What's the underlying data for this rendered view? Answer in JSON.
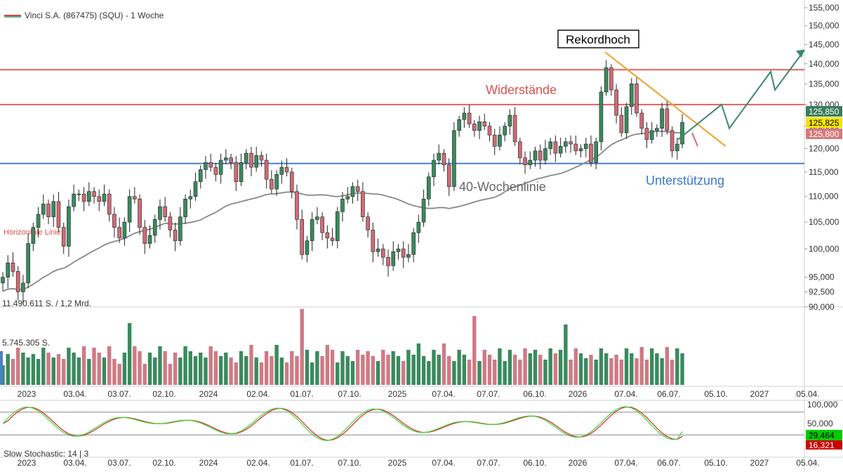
{
  "header": {
    "title": "Vinci S.A. (867475) (SQU) - 1 Woche",
    "legend_line_color": "#c84c4c"
  },
  "chart_data": [
    {
      "type": "candlestick",
      "title": "Vinci S.A. (867475) (SQU) - 1 Woche",
      "period": "1 Woche",
      "x_ticks": [
        "2023",
        "03.04.",
        "03.07.",
        "02.10.",
        "2024",
        "02.04.",
        "01.07.",
        "07.10.",
        "2025",
        "07.04.",
        "07.07.",
        "06.10.",
        "2026",
        "07.04.",
        "06.07.",
        "05.10.",
        "2027",
        "05.04."
      ],
      "y_ticks": [
        "155,000",
        "150,000",
        "145,000",
        "140,000",
        "135,000",
        "130,000",
        "125,000",
        "120,000",
        "115,000",
        "110,000",
        "105,000",
        "100,000",
        "95,000",
        "92,500",
        "90,000"
      ],
      "ylim": [
        90,
        156
      ],
      "y_scale": "log",
      "grid": false,
      "price_labels": [
        {
          "value": "125,850",
          "color": "#3a7d5c"
        },
        {
          "value": "125,825",
          "color": "#f5e400"
        },
        {
          "value": "125,800",
          "color": "#d67a7a"
        }
      ],
      "close_prices": [
        95.0,
        97.5,
        96.0,
        92.5,
        94.0,
        101.0,
        104.0,
        106.5,
        108.5,
        106.0,
        109.0,
        104.0,
        100.5,
        108.0,
        110.5,
        110.5,
        109.0,
        111.0,
        110.0,
        109.0,
        110.5,
        106.5,
        104.0,
        102.0,
        105.0,
        110.0,
        109.5,
        104.0,
        101.0,
        102.5,
        105.5,
        108.0,
        106.0,
        103.5,
        101.5,
        106.0,
        109.5,
        110.0,
        113.0,
        115.5,
        117.0,
        116.0,
        114.5,
        117.5,
        118.0,
        117.0,
        113.0,
        117.0,
        119.0,
        116.0,
        118.5,
        117.5,
        113.5,
        111.5,
        114.5,
        116.0,
        115.0,
        111.0,
        105.5,
        99.0,
        101.5,
        105.5,
        106.0,
        103.0,
        102.0,
        101.5,
        107.0,
        109.5,
        110.0,
        112.0,
        111.0,
        106.0,
        103.5,
        99.5,
        100.0,
        98.5,
        97.0,
        99.5,
        100.0,
        98.5,
        99.0,
        103.0,
        105.0,
        109.5,
        114.0,
        117.5,
        119.0,
        116.5,
        112.0,
        124.0,
        126.5,
        128.0,
        125.5,
        124.0,
        126.0,
        125.0,
        123.0,
        120.5,
        123.0,
        125.0,
        127.5,
        121.5,
        118.0,
        116.5,
        117.5,
        119.5,
        117.5,
        120.0,
        121.5,
        119.0,
        120.5,
        121.5,
        121.0,
        119.5,
        120.0,
        121.0,
        117.0,
        121.5,
        133.0,
        139.0,
        133.5,
        127.5,
        123.5,
        129.5,
        135.0,
        128.0,
        124.5,
        122.0,
        124.0,
        124.5,
        129.0,
        124.0,
        119.5,
        121.0,
        125.85
      ],
      "moving_average": {
        "name": "40-Wochenlinie",
        "color": "#888888"
      },
      "horizontal_lines": [
        {
          "value": 138.5,
          "color": "#e06060"
        },
        {
          "value": 130.0,
          "color": "#e06060"
        },
        {
          "value": 116.8,
          "color": "#4a80c8"
        }
      ],
      "trend_line": {
        "color": "#f2a12a",
        "from": {
          "date": "2026-02",
          "value": 143
        },
        "to": {
          "date": "2026-10",
          "value": 120.5
        }
      },
      "projection": {
        "color": "#3a8a6a",
        "values": [
          122,
          130,
          124.5,
          138,
          133.5,
          143.5
        ]
      },
      "annotations": [
        {
          "text": "Rekordhoch",
          "boxed": true
        },
        {
          "text": "Widerstände",
          "color": "#d9534f"
        },
        {
          "text": "Unterstützung",
          "color": "#3a78c8"
        },
        {
          "text": "40-Wochenlinie",
          "color": "#666666"
        },
        {
          "text": "Horizontale Linie",
          "color": "#d9534f"
        }
      ],
      "volume_panel": {
        "label_top": "11.490.611 S. / 1,2 Mrd.",
        "label_mid": "5.745.305 S.",
        "up_color": "#3a8a5e",
        "down_color": "#cf7a85"
      },
      "stochastic_panel": {
        "label": "Slow Stochastic: 14 | 3",
        "y_ticks": [
          "100,000",
          "50,000"
        ],
        "value_labels": [
          {
            "value": "29,464",
            "color": "#00cc00"
          },
          {
            "value": "16,321",
            "color": "#cc0000"
          }
        ],
        "k_color": "#33dd33",
        "d_color": "#dd2222"
      }
    }
  ]
}
